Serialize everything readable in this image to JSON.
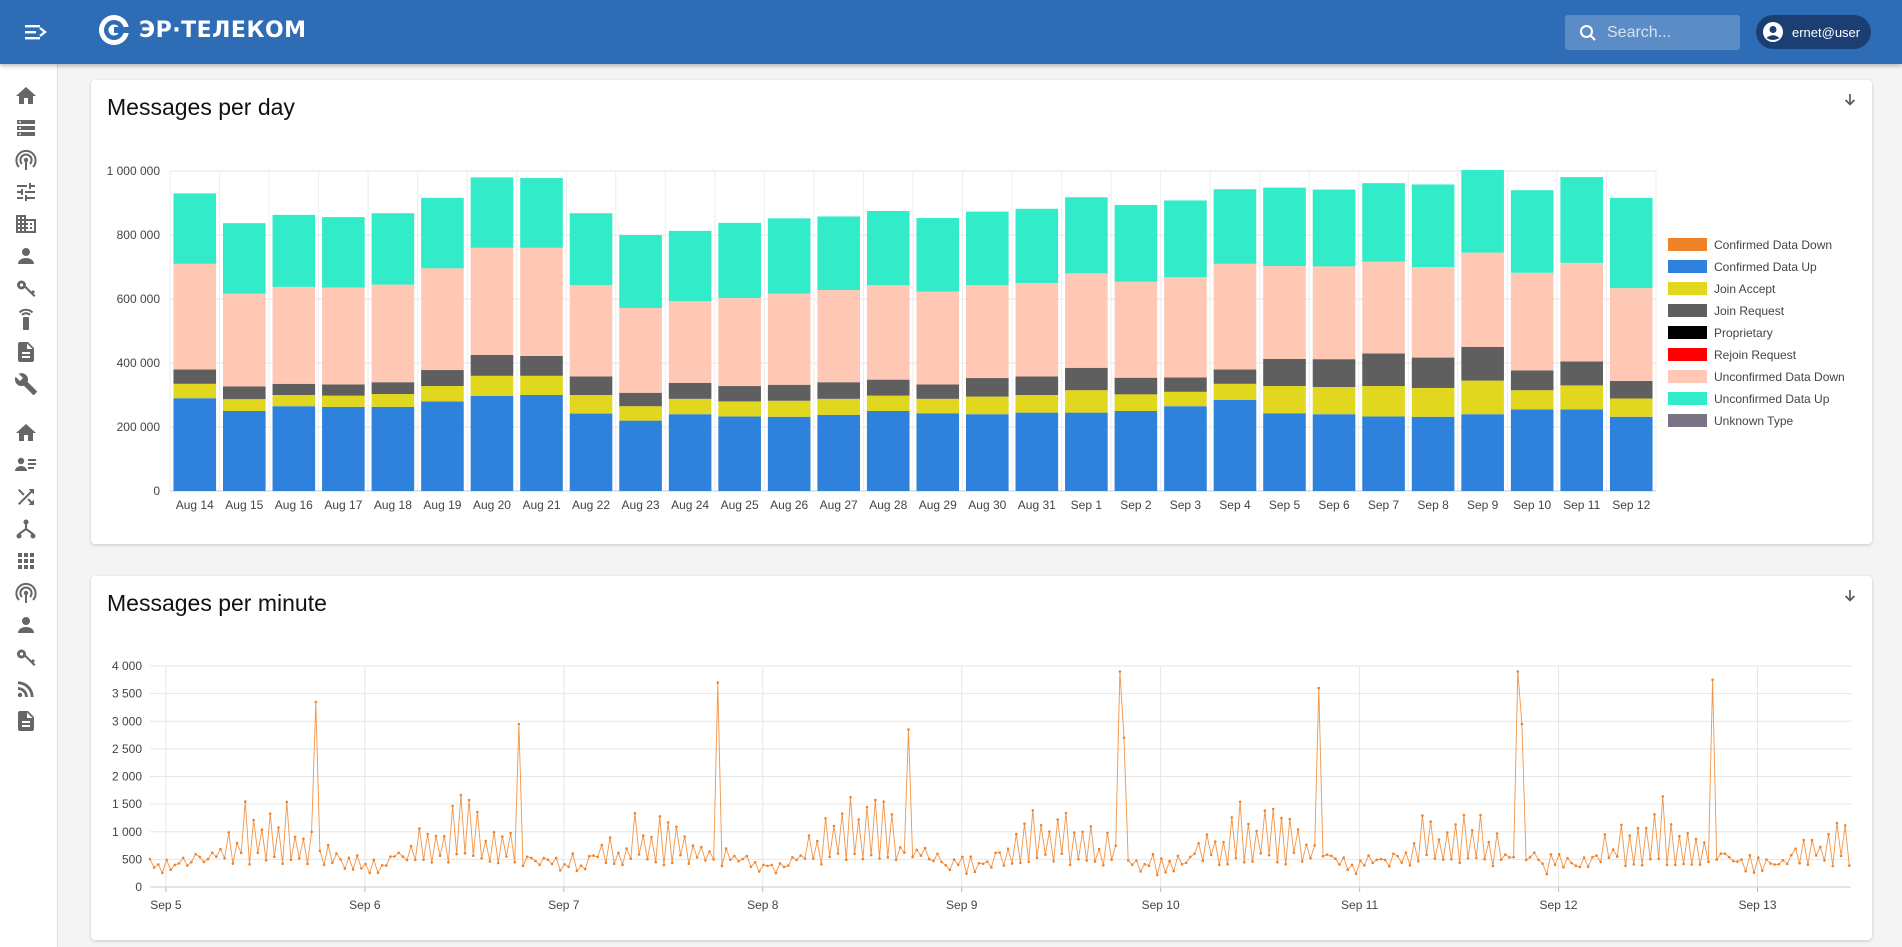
{
  "header": {
    "logo_text": "ЭР·ТЕЛЕКОМ",
    "search_placeholder": "Search...",
    "user": "ernet@user"
  },
  "sidebar": {
    "group1": [
      "home-icon",
      "servers-icon",
      "gateway-icon",
      "tune-icon",
      "organization-icon",
      "user-icon",
      "key-icon",
      "device-icon",
      "document-icon",
      "wrench-icon"
    ],
    "group2": [
      "home-icon",
      "user-list-icon",
      "shuffle-icon",
      "hierarchy-icon",
      "apps-icon",
      "gateway-icon",
      "user-icon",
      "key-icon",
      "rss-icon",
      "document-icon"
    ]
  },
  "cards": {
    "day_title": "Messages per day",
    "minute_title": "Messages per minute"
  },
  "colors": {
    "Confirmed Data Down": "#f08228",
    "Confirmed Data Up": "#2f82db",
    "Join Accept": "#e1d71e",
    "Join Request": "#5f5f5f",
    "Proprietary": "#000000",
    "Rejoin Request": "#ff0000",
    "Unconfirmed Data Down": "#ffc8b4",
    "Unconfirmed Data Up": "#32ebc8",
    "Unknown Type": "#7a7385"
  },
  "chart_data": [
    {
      "type": "bar",
      "title": "Messages per day",
      "stacked": true,
      "ylim": [
        0,
        1000000
      ],
      "yticks": [
        0,
        200000,
        400000,
        600000,
        800000,
        1000000
      ],
      "ytick_labels": [
        "0",
        "200 000",
        "400 000",
        "600 000",
        "800 000",
        "1 000 000"
      ],
      "legend": [
        "Confirmed Data Down",
        "Confirmed Data Up",
        "Join Accept",
        "Join Request",
        "Proprietary",
        "Rejoin Request",
        "Unconfirmed Data Down",
        "Unconfirmed Data Up",
        "Unknown Type"
      ],
      "legend_position": "right",
      "categories": [
        "Aug 14",
        "Aug 15",
        "Aug 16",
        "Aug 17",
        "Aug 18",
        "Aug 19",
        "Aug 20",
        "Aug 21",
        "Aug 22",
        "Aug 23",
        "Aug 24",
        "Aug 25",
        "Aug 26",
        "Aug 27",
        "Aug 28",
        "Aug 29",
        "Aug 30",
        "Aug 31",
        "Sep 1",
        "Sep 2",
        "Sep 3",
        "Sep 4",
        "Sep 5",
        "Sep 6",
        "Sep 7",
        "Sep 8",
        "Sep 9",
        "Sep 10",
        "Sep 11",
        "Sep 12"
      ],
      "series": [
        {
          "name": "Confirmed Data Up",
          "values": [
            290000,
            250000,
            265000,
            263000,
            263000,
            280000,
            297000,
            300000,
            242000,
            220000,
            240000,
            233000,
            232000,
            238000,
            250000,
            243000,
            240000,
            245000,
            245000,
            250000,
            265000,
            285000,
            243000,
            240000,
            233000,
            232000,
            240000,
            255000,
            255000,
            232000
          ]
        },
        {
          "name": "Join Accept",
          "values": [
            45000,
            37000,
            35000,
            35000,
            40000,
            48000,
            63000,
            60000,
            58000,
            45000,
            48000,
            47000,
            50000,
            50000,
            48000,
            45000,
            55000,
            55000,
            70000,
            52000,
            45000,
            50000,
            85000,
            85000,
            95000,
            90000,
            105000,
            60000,
            75000,
            57000
          ]
        },
        {
          "name": "Join Request",
          "values": [
            45000,
            40000,
            35000,
            35000,
            37000,
            50000,
            65000,
            62000,
            58000,
            42000,
            50000,
            48000,
            50000,
            52000,
            50000,
            45000,
            58000,
            58000,
            70000,
            52000,
            45000,
            45000,
            85000,
            87000,
            102000,
            95000,
            105000,
            62000,
            75000,
            55000
          ]
        },
        {
          "name": "Unconfirmed Data Down",
          "values": [
            330000,
            290000,
            303000,
            303000,
            305000,
            318000,
            335000,
            338000,
            285000,
            265000,
            255000,
            275000,
            285000,
            288000,
            295000,
            290000,
            290000,
            292000,
            295000,
            300000,
            313000,
            330000,
            290000,
            290000,
            287000,
            283000,
            295000,
            305000,
            308000,
            290000
          ]
        },
        {
          "name": "Unconfirmed Data Up",
          "values": [
            220000,
            220000,
            225000,
            220000,
            223000,
            220000,
            220000,
            218000,
            225000,
            228000,
            220000,
            235000,
            235000,
            230000,
            232000,
            230000,
            230000,
            232000,
            238000,
            240000,
            240000,
            233000,
            245000,
            240000,
            245000,
            258000,
            258000,
            258000,
            268000,
            282000
          ]
        }
      ]
    },
    {
      "type": "line",
      "title": "Messages per minute",
      "ylim": [
        0,
        4000
      ],
      "yticks": [
        0,
        500,
        1000,
        1500,
        2000,
        2500,
        3000,
        3500,
        4000
      ],
      "ytick_labels": [
        "0",
        "500",
        "1 000",
        "1 500",
        "2 000",
        "2 500",
        "3 000",
        "3 500",
        "4 000"
      ],
      "x_labels": [
        "Sep 5",
        "Sep 6",
        "Sep 7",
        "Sep 8",
        "Sep 9",
        "Sep 10",
        "Sep 11",
        "Sep 12",
        "Sep 13"
      ],
      "x_range_days": [
        -0.08,
        8.47
      ],
      "series": [
        {
          "name": "Messages per minute",
          "color": "#f08228",
          "points_per_day": 48,
          "base_min": 380,
          "base_max": 1750,
          "peaks": [
            [
              0.76,
              3350
            ],
            [
              1.77,
              2950
            ],
            [
              2.77,
              3700
            ],
            [
              3.73,
              2850
            ],
            [
              4.79,
              3900
            ],
            [
              4.82,
              2700
            ],
            [
              5.8,
              3600
            ],
            [
              6.79,
              3900
            ],
            [
              6.81,
              2950
            ],
            [
              7.78,
              3750
            ]
          ]
        }
      ]
    }
  ]
}
